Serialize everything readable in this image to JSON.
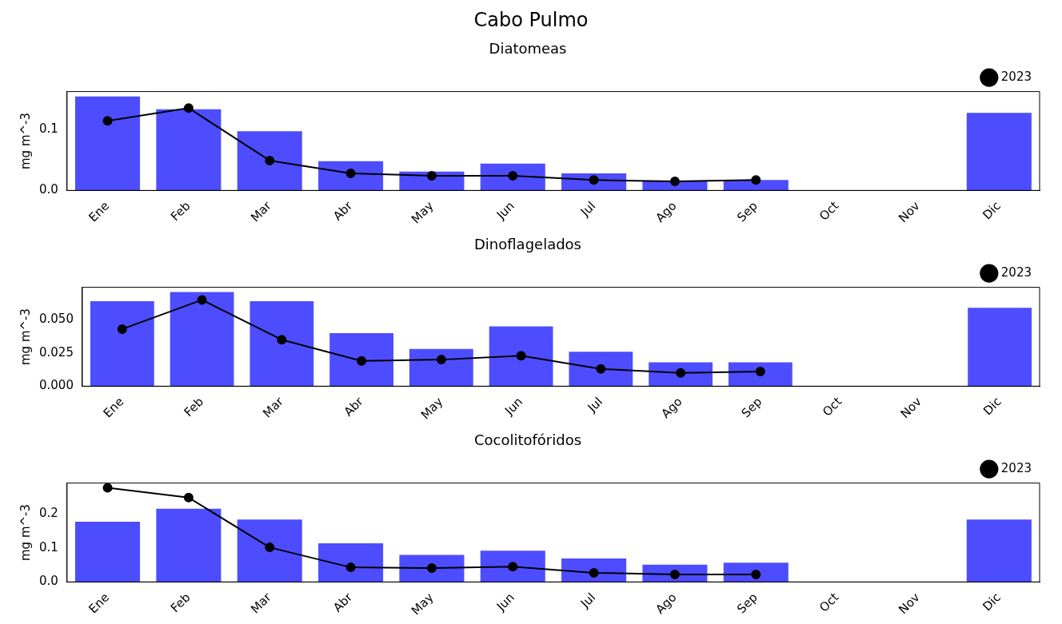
{
  "chart_data": [
    {
      "type": "bar",
      "annotations": [
        "Cabo Pulmo"
      ],
      "title": "Diatomeas",
      "ylabel": "mg m^-3",
      "categories": [
        "Ene",
        "Feb",
        "Mar",
        "Abr",
        "May",
        "Jun",
        "Jul",
        "Ago",
        "Sep",
        "Oct",
        "Nov",
        "Dic"
      ],
      "series": [
        {
          "color": "#4d4dff",
          "values": [
            0.154,
            0.133,
            0.097,
            0.048,
            0.031,
            0.044,
            0.028,
            0.015,
            0.017,
            null,
            null,
            0.127
          ]
        },
        {
          "type": "line",
          "name": "2023",
          "color": "#000000",
          "values": [
            0.114,
            0.135,
            0.049,
            0.028,
            0.024,
            0.024,
            0.017,
            0.015,
            0.017,
            null,
            null,
            null
          ]
        }
      ],
      "ylim": [
        0,
        0.162
      ],
      "yticks": [
        {
          "value": 0,
          "label": "0.0"
        },
        {
          "value": 0.1,
          "label": "0.1"
        }
      ],
      "grid": false,
      "legend": "top right",
      "marker": "circle",
      "line_style": "solid"
    },
    {
      "type": "bar",
      "title": "Dinoflagelados",
      "ylabel": "mg m^-3",
      "categories": [
        "Ene",
        "Feb",
        "Mar",
        "Abr",
        "May",
        "Jun",
        "Jul",
        "Ago",
        "Sep",
        "Oct",
        "Nov",
        "Dic"
      ],
      "series": [
        {
          "color": "#4d4dff",
          "values": [
            0.064,
            0.071,
            0.064,
            0.04,
            0.028,
            0.045,
            0.026,
            0.018,
            0.018,
            null,
            null,
            0.059
          ]
        },
        {
          "type": "line",
          "name": "2023",
          "color": "#000000",
          "values": [
            0.043,
            0.065,
            0.035,
            0.019,
            0.02,
            0.023,
            0.013,
            0.01,
            0.011,
            null,
            null,
            null
          ]
        }
      ],
      "ylim": [
        0,
        0.0745
      ],
      "yticks": [
        {
          "value": 0,
          "label": "0.000"
        },
        {
          "value": 0.025,
          "label": "0.025"
        },
        {
          "value": 0.05,
          "label": "0.050"
        }
      ],
      "grid": false,
      "legend": "top right",
      "marker": "circle",
      "line_style": "solid"
    },
    {
      "type": "bar",
      "title": "Cocolitofóridos",
      "ylabel": "mg m^-3",
      "categories": [
        "Ene",
        "Feb",
        "Mar",
        "Abr",
        "May",
        "Jun",
        "Jul",
        "Ago",
        "Sep",
        "Oct",
        "Nov",
        "Dic"
      ],
      "series": [
        {
          "color": "#4d4dff",
          "values": [
            0.178,
            0.216,
            0.184,
            0.114,
            0.08,
            0.092,
            0.069,
            0.051,
            0.057,
            null,
            null,
            0.184
          ]
        },
        {
          "type": "line",
          "name": "2023",
          "color": "#000000",
          "values": [
            0.278,
            0.249,
            0.102,
            0.043,
            0.041,
            0.045,
            0.027,
            0.022,
            0.022,
            null,
            null,
            null
          ]
        }
      ],
      "ylim": [
        0,
        0.292
      ],
      "yticks": [
        {
          "value": 0,
          "label": "0.0"
        },
        {
          "value": 0.1,
          "label": "0.1"
        },
        {
          "value": 0.2,
          "label": "0.2"
        }
      ],
      "grid": false,
      "legend": "top right",
      "marker": "circle",
      "line_style": "solid"
    }
  ]
}
